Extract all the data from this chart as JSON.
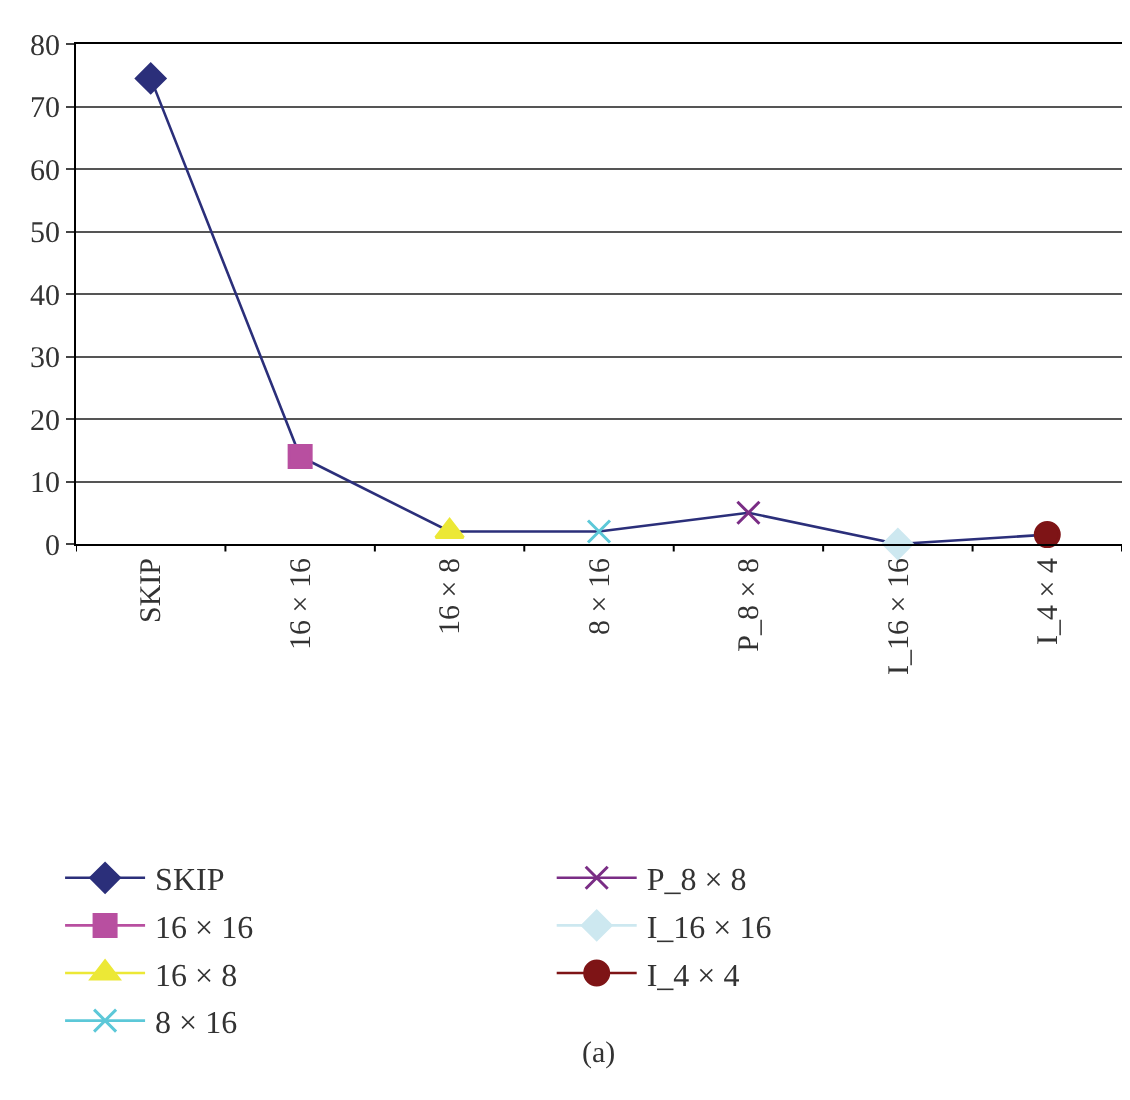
{
  "chart_data": {
    "type": "line",
    "categories": [
      "SKIP",
      "16 × 16",
      "16 × 8",
      "8 × 16",
      "P_8 × 8",
      "I_16 × 16",
      "I_4 × 4"
    ],
    "series": [
      {
        "type": "line",
        "color": "#2b2f7a",
        "marker": "none",
        "values": [
          74.5,
          14,
          2,
          2,
          5,
          0,
          1.5
        ]
      },
      {
        "name": "SKIP",
        "color": "#2b2f7a",
        "marker": "diamond",
        "values": [
          74.5,
          null,
          null,
          null,
          null,
          null,
          null
        ]
      },
      {
        "name": "16 × 16",
        "color": "#b84fa0",
        "marker": "square",
        "values": [
          null,
          14,
          null,
          null,
          null,
          null,
          null
        ]
      },
      {
        "name": "16 × 8",
        "color": "#ece836",
        "marker": "triangle",
        "values": [
          null,
          null,
          2,
          null,
          null,
          null,
          null
        ]
      },
      {
        "name": "8 × 16",
        "color": "#5cc8d8",
        "marker": "cross",
        "values": [
          null,
          null,
          null,
          2,
          null,
          null,
          null
        ]
      },
      {
        "name": "P_8 × 8",
        "color": "#7a2d85",
        "marker": "cross",
        "values": [
          null,
          null,
          null,
          null,
          5,
          null,
          null
        ]
      },
      {
        "name": "I_16 × 16",
        "color": "#cde8f0",
        "marker": "diamond",
        "values": [
          null,
          null,
          null,
          null,
          null,
          0,
          null
        ]
      },
      {
        "name": "I_4 × 4",
        "color": "#7e1416",
        "marker": "circle",
        "values": [
          null,
          null,
          null,
          null,
          null,
          null,
          1.5
        ]
      }
    ],
    "ylim": [
      0,
      80
    ],
    "yticks": [
      0,
      10,
      20,
      30,
      40,
      50,
      60,
      70,
      80
    ],
    "grid": "y",
    "legend": "bottom",
    "annotations": [
      "(a)"
    ]
  }
}
